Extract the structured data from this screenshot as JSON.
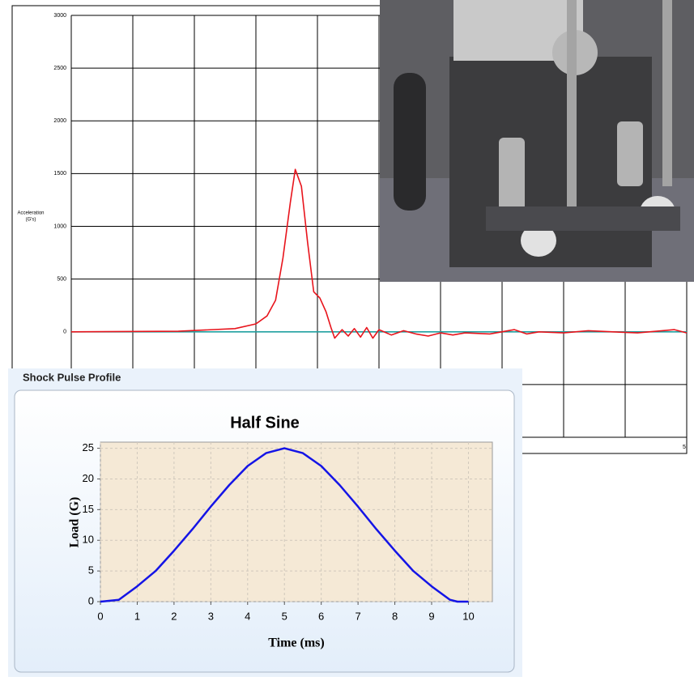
{
  "chart_data": [
    {
      "type": "line",
      "ylabel": [
        "Acceleration",
        "(G's)"
      ],
      "xlim": [
        0,
        5
      ],
      "xticks": [
        5
      ],
      "xgrid": [
        0.5,
        1,
        1.5,
        2,
        2.5,
        3,
        3.5,
        4,
        4.5
      ],
      "ylim": [
        -1000,
        3000
      ],
      "yticks": [
        0,
        500,
        1000,
        1500,
        2000,
        2500,
        3000
      ],
      "ygrid": [
        -1000,
        -500
      ],
      "grid": true,
      "series": [
        {
          "color": "#e8141c",
          "x": [
            0,
            0.87,
            1.33,
            1.5,
            1.59,
            1.66,
            1.72,
            1.78,
            1.82,
            1.87,
            1.92,
            1.97,
            2.02,
            2.07,
            2.11,
            2.14,
            2.2,
            2.25,
            2.3,
            2.35,
            2.4,
            2.45,
            2.5,
            2.6,
            2.7,
            2.8,
            2.9,
            3.0,
            3.1,
            3.2,
            3.4,
            3.6,
            3.7,
            3.8,
            4.0,
            4.2,
            4.4,
            4.6,
            4.8,
            4.9,
            5.0
          ],
          "values": [
            0,
            5,
            30,
            75,
            150,
            300,
            700,
            1230,
            1540,
            1380,
            850,
            380,
            320,
            190,
            40,
            -60,
            20,
            -40,
            30,
            -50,
            40,
            -60,
            20,
            -30,
            10,
            -20,
            -40,
            -10,
            -30,
            -10,
            -20,
            20,
            -20,
            0,
            -10,
            10,
            0,
            -10,
            10,
            20,
            -10
          ]
        },
        {
          "color": "#20a0a0",
          "x": [
            0,
            5
          ],
          "values": [
            0,
            0
          ]
        }
      ]
    },
    {
      "type": "line",
      "panel_title": "Shock Pulse Profile",
      "title": "Half Sine",
      "xlabel": "Time (ms)",
      "ylabel": "Load (G)",
      "xlim": [
        0,
        10.65
      ],
      "xticks": [
        0,
        1,
        2,
        3,
        4,
        5,
        6,
        7,
        8,
        9,
        10
      ],
      "ylim": [
        0,
        26
      ],
      "yticks": [
        0,
        5,
        10,
        15,
        20,
        25
      ],
      "grid": true,
      "series": [
        {
          "color": "#1414e6",
          "x": [
            0,
            0.5,
            1,
            1.5,
            2,
            2.5,
            3,
            3.5,
            4,
            4.5,
            5,
            5.5,
            6,
            6.5,
            7,
            7.5,
            8,
            8.5,
            9,
            9.5,
            9.7,
            10
          ],
          "values": [
            0,
            0.3,
            2.5,
            5,
            8.3,
            11.8,
            15.5,
            19,
            22.1,
            24.2,
            25,
            24.2,
            22.1,
            19,
            15.5,
            11.8,
            8.3,
            5,
            2.5,
            0.3,
            0,
            0
          ]
        }
      ]
    }
  ]
}
